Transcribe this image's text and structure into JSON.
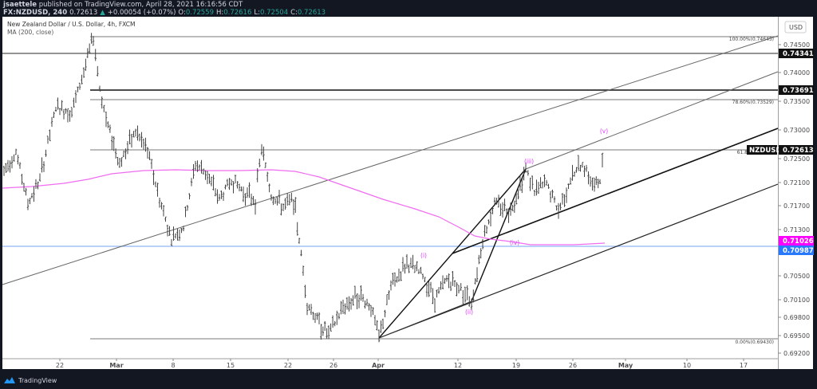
{
  "header": {
    "publisher": "jsaettele",
    "published_text": "published on TradingView.com, April 28, 2021 16:16:56 CDT",
    "symbol": "FX:NZDUSD, 240",
    "last": "0.72613",
    "change": "+0.00054 (+0.07%)",
    "open_label": "O:",
    "open": "0.72559",
    "high_label": "H:",
    "high": "0.72616",
    "low_label": "L:",
    "low": "0.72504",
    "close_label": "C:",
    "close": "0.72613"
  },
  "chart_title": "New Zealand Dollar / U.S. Dollar, 4h, FXCM",
  "indicator_label": "MA (200, close)",
  "currency_badge": "USD",
  "footer": {
    "brand": "TradingView"
  },
  "colors": {
    "background": "#131722",
    "up": "#26a69a",
    "ma": "#e040fb",
    "hline_blue": "#2962ff",
    "magenta_tag": "#ff00ff",
    "blue_tag": "#2979ff"
  },
  "price_tags": [
    {
      "label": "0.74341",
      "type": "hline"
    },
    {
      "label": "0.73691",
      "type": "hline"
    },
    {
      "label": "0.72613",
      "type": "last",
      "symbol": "NZDUSD"
    },
    {
      "label": "0.71026",
      "type": "ma"
    },
    {
      "label": "0.70987",
      "type": "hline-blue"
    }
  ],
  "fib_levels": [
    {
      "label": "100.00%(0.74645)"
    },
    {
      "label": "78.60%(0.73529)"
    },
    {
      "label": "61.8"
    },
    {
      "label": "0.00%(0.69430)"
    }
  ],
  "wave_labels": [
    "(i)",
    "(ii)",
    "(iii)",
    "(iv)",
    "(v)"
  ],
  "chart_data": {
    "type": "ohlc-bar",
    "title": "New Zealand Dollar / U.S. Dollar, 4h, FXCM",
    "symbol": "FX:NZDUSD",
    "interval": "4h",
    "xlabel": "",
    "ylabel": "USD",
    "x_ticks": [
      "22",
      "Mar",
      "8",
      "15",
      "22",
      "26",
      "Apr",
      "12",
      "19",
      "26",
      "May",
      "10",
      "17"
    ],
    "y_ticks": [
      "0.74500",
      "0.74000",
      "0.73500",
      "0.73000",
      "0.72500",
      "0.72100",
      "0.71700",
      "0.71300",
      "0.70500",
      "0.70100",
      "0.69800",
      "0.69500",
      "0.69200"
    ],
    "ylim": [
      0.6905,
      0.748
    ],
    "indicators": [
      {
        "name": "MA (200, close)",
        "last": 0.71026
      }
    ],
    "horizontal_lines": [
      0.74341,
      0.73691,
      0.70987
    ],
    "fibonacci": [
      {
        "level": "100.00%",
        "price": 0.74645
      },
      {
        "level": "78.60%",
        "price": 0.73529
      },
      {
        "level": "61.8%",
        "price": 0.72613
      },
      {
        "level": "0.00%",
        "price": 0.6943
      }
    ],
    "last_price": 0.72613,
    "price_path_approx": [
      {
        "date": "Feb 15",
        "price": 0.723
      },
      {
        "date": "Feb 18",
        "price": 0.716
      },
      {
        "date": "Feb 22",
        "price": 0.73
      },
      {
        "date": "Feb 25",
        "price": 0.746
      },
      {
        "date": "Mar 1",
        "price": 0.722
      },
      {
        "date": "Mar 3",
        "price": 0.729
      },
      {
        "date": "Mar 8",
        "price": 0.711
      },
      {
        "date": "Mar 12",
        "price": 0.723
      },
      {
        "date": "Mar 18",
        "price": 0.7265
      },
      {
        "date": "Mar 22",
        "price": 0.717
      },
      {
        "date": "Mar 25",
        "price": 0.6945
      },
      {
        "date": "Mar 31",
        "price": 0.7
      },
      {
        "date": "Apr 1",
        "price": 0.6943
      },
      {
        "date": "Apr 7",
        "price": 0.706
      },
      {
        "date": "Apr 13",
        "price": 0.701
      },
      {
        "date": "Apr 20",
        "price": 0.723
      },
      {
        "date": "Apr 23",
        "price": 0.7155
      },
      {
        "date": "Apr 26",
        "price": 0.7225
      },
      {
        "date": "Apr 27",
        "price": 0.7185
      },
      {
        "date": "Apr 28",
        "price": 0.7261
      }
    ],
    "annotations": [
      {
        "text": "(i)",
        "price": 0.7075
      },
      {
        "text": "(ii)",
        "price": 0.699
      },
      {
        "text": "(iii)",
        "price": 0.724
      },
      {
        "text": "(iv)",
        "price": 0.7105
      },
      {
        "text": "(v)",
        "price": 0.7285
      }
    ]
  }
}
